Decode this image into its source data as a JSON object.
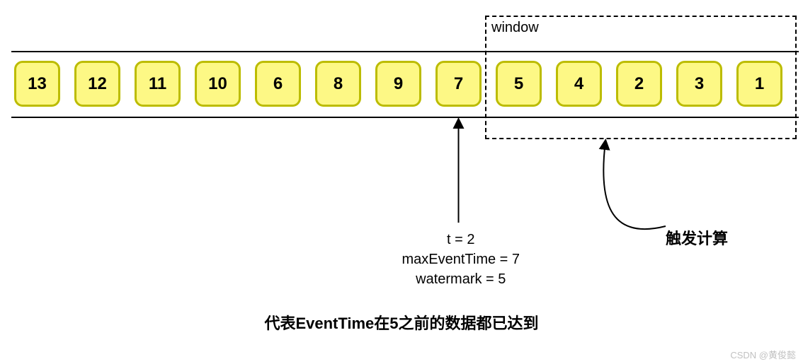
{
  "window": {
    "label": "window"
  },
  "events": {
    "values": [
      "13",
      "12",
      "11",
      "10",
      "6",
      "8",
      "9",
      "7",
      "5",
      "4",
      "2",
      "3",
      "1"
    ],
    "box_fill": "#fdf885",
    "box_border": "#bcbc00",
    "box_border_width": 3,
    "text_color": "#000000"
  },
  "pointer": {
    "target_index": 7,
    "lines": [
      "t = 2",
      "maxEventTime = 7",
      "watermark = 5"
    ]
  },
  "trigger": {
    "label": "触发计算"
  },
  "caption": "代表EventTime在5之前的数据都已达到",
  "credit": "CSDN @黄俊懿",
  "stream": {
    "track_border_color": "#000000",
    "window_border_style": "dashed"
  }
}
